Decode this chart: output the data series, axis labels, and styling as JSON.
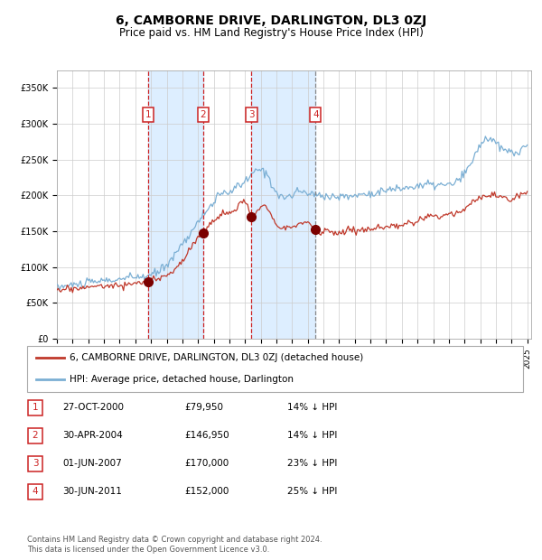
{
  "title": "6, CAMBORNE DRIVE, DARLINGTON, DL3 0ZJ",
  "subtitle": "Price paid vs. HM Land Registry's House Price Index (HPI)",
  "ylim": [
    0,
    375000
  ],
  "yticks": [
    0,
    50000,
    100000,
    150000,
    200000,
    250000,
    300000,
    350000
  ],
  "ytick_labels": [
    "£0",
    "£50K",
    "£100K",
    "£150K",
    "£200K",
    "£250K",
    "£300K",
    "£350K"
  ],
  "hpi_color": "#7bafd4",
  "property_color": "#c0392b",
  "sale_marker_color": "#7b0000",
  "background_color": "#ffffff",
  "grid_color": "#cccccc",
  "shading_color": "#ddeeff",
  "vline_color_red": "#cc2222",
  "vline_color_grey": "#888888",
  "sale_dates": [
    "2000-10-27",
    "2004-04-30",
    "2007-06-01",
    "2011-06-30"
  ],
  "sale_prices": [
    79950,
    146950,
    170000,
    152000
  ],
  "sale_labels": [
    "1",
    "2",
    "3",
    "4"
  ],
  "label_row": [
    [
      "1",
      "27-OCT-2000",
      "£79,950",
      "14% ↓ HPI"
    ],
    [
      "2",
      "30-APR-2004",
      "£146,950",
      "14% ↓ HPI"
    ],
    [
      "3",
      "01-JUN-2007",
      "£170,000",
      "23% ↓ HPI"
    ],
    [
      "4",
      "30-JUN-2011",
      "£152,000",
      "25% ↓ HPI"
    ]
  ],
  "legend_entries": [
    [
      "6, CAMBORNE DRIVE, DARLINGTON, DL3 0ZJ (detached house)",
      "#c0392b"
    ],
    [
      "HPI: Average price, detached house, Darlington",
      "#7bafd4"
    ]
  ],
  "footer": "Contains HM Land Registry data © Crown copyright and database right 2024.\nThis data is licensed under the Open Government Licence v3.0.",
  "title_fontsize": 10,
  "subtitle_fontsize": 8.5,
  "tick_fontsize": 7
}
